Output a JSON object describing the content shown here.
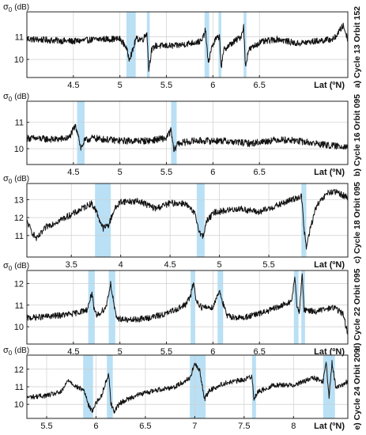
{
  "chart_data": [
    {
      "type": "line",
      "panel_label": "a) Cycle 13 Orbit 152",
      "ylabel_symbol": "σ",
      "ylabel_sub": "0",
      "ylabel_unit": "(dB)",
      "xlabel": "Lat (ºN)",
      "xlim": [
        4.0,
        7.45
      ],
      "ylim": [
        9.2,
        12.1
      ],
      "xticks": [
        4.5,
        5,
        5.5,
        6,
        6.5
      ],
      "xtick_labels": [
        "4.5",
        "5",
        "5.5",
        "6",
        "6.5"
      ],
      "yticks": [
        10,
        11
      ],
      "ytick_labels": [
        "10",
        "11"
      ],
      "grid": true,
      "highlight_bands": [
        [
          5.07,
          5.17
        ],
        [
          5.29,
          5.32
        ],
        [
          5.91,
          5.96
        ],
        [
          6.06,
          6.09
        ],
        [
          6.33,
          6.36
        ]
      ],
      "series": [
        {
          "points": [
            [
              4.0,
              10.9
            ],
            [
              4.5,
              10.8
            ],
            [
              4.8,
              10.9
            ],
            [
              5.0,
              10.9
            ],
            [
              5.06,
              10.6
            ],
            [
              5.1,
              10.05
            ],
            [
              5.14,
              10.4
            ],
            [
              5.17,
              10.9
            ],
            [
              5.25,
              10.9
            ],
            [
              5.29,
              11.2
            ],
            [
              5.31,
              9.55
            ],
            [
              5.34,
              10.4
            ],
            [
              5.38,
              10.6
            ],
            [
              5.6,
              10.6
            ],
            [
              5.8,
              10.75
            ],
            [
              5.88,
              10.8
            ],
            [
              5.92,
              11.3
            ],
            [
              5.95,
              9.8
            ],
            [
              5.98,
              10.45
            ],
            [
              6.03,
              10.9
            ],
            [
              6.07,
              11.0
            ],
            [
              6.09,
              9.65
            ],
            [
              6.12,
              10.45
            ],
            [
              6.2,
              10.7
            ],
            [
              6.3,
              11.0
            ],
            [
              6.33,
              11.45
            ],
            [
              6.35,
              9.65
            ],
            [
              6.38,
              10.4
            ],
            [
              6.5,
              10.75
            ],
            [
              6.7,
              10.9
            ],
            [
              6.9,
              10.7
            ],
            [
              7.1,
              10.8
            ],
            [
              7.3,
              10.9
            ],
            [
              7.4,
              11.5
            ],
            [
              7.45,
              10.9
            ]
          ],
          "noise": 0.14
        }
      ]
    },
    {
      "type": "line",
      "panel_label": "b) Cycle 16 Orbit 095",
      "ylabel_symbol": "σ",
      "ylabel_sub": "0",
      "ylabel_unit": "(dB)",
      "xlabel": "Lat (ºN)",
      "xlim": [
        4.0,
        7.45
      ],
      "ylim": [
        9.4,
        11.8
      ],
      "xticks": [
        4.5,
        5,
        5.5,
        6,
        6.5
      ],
      "xtick_labels": [
        "4.5",
        "5",
        "5.5",
        "6",
        "6.5"
      ],
      "yticks": [
        10,
        11
      ],
      "ytick_labels": [
        "10",
        "11"
      ],
      "grid": true,
      "highlight_bands": [
        [
          4.54,
          4.62
        ],
        [
          5.55,
          5.61
        ]
      ],
      "series": [
        {
          "points": [
            [
              4.0,
              10.4
            ],
            [
              4.3,
              10.35
            ],
            [
              4.45,
              10.4
            ],
            [
              4.52,
              10.85
            ],
            [
              4.55,
              10.6
            ],
            [
              4.58,
              10.0
            ],
            [
              4.62,
              10.3
            ],
            [
              4.7,
              10.4
            ],
            [
              5.0,
              10.3
            ],
            [
              5.3,
              10.3
            ],
            [
              5.5,
              10.4
            ],
            [
              5.55,
              10.7
            ],
            [
              5.58,
              9.9
            ],
            [
              5.62,
              10.2
            ],
            [
              5.8,
              10.3
            ],
            [
              6.1,
              10.3
            ],
            [
              6.4,
              10.2
            ],
            [
              6.7,
              10.35
            ],
            [
              6.9,
              10.3
            ],
            [
              7.1,
              10.2
            ],
            [
              7.3,
              10.1
            ],
            [
              7.45,
              10.1
            ]
          ],
          "noise": 0.13
        }
      ]
    },
    {
      "type": "line",
      "panel_label": "c) Cycle 18 Orbit 095",
      "ylabel_symbol": "σ",
      "ylabel_sub": "0",
      "ylabel_unit": "(dB)",
      "xlabel": "Lat (ºN)",
      "xlim": [
        3.05,
        6.3
      ],
      "ylim": [
        9.8,
        13.9
      ],
      "xticks": [
        3.5,
        4,
        4.5,
        5,
        5.5
      ],
      "xtick_labels": [
        "3.5",
        "4",
        "4.5",
        "5",
        "5.5"
      ],
      "yticks": [
        11,
        12,
        13
      ],
      "ytick_labels": [
        "11",
        "12",
        "13"
      ],
      "grid": true,
      "highlight_bands": [
        [
          3.74,
          3.9
        ],
        [
          4.77,
          4.85
        ],
        [
          5.83,
          5.88
        ]
      ],
      "series": [
        {
          "points": [
            [
              3.05,
              11.8
            ],
            [
              3.1,
              11.2
            ],
            [
              3.15,
              10.8
            ],
            [
              3.25,
              11.5
            ],
            [
              3.4,
              11.9
            ],
            [
              3.55,
              12.3
            ],
            [
              3.7,
              12.8
            ],
            [
              3.75,
              12.4
            ],
            [
              3.82,
              11.4
            ],
            [
              3.88,
              11.6
            ],
            [
              3.93,
              12.4
            ],
            [
              4.0,
              12.9
            ],
            [
              4.2,
              12.9
            ],
            [
              4.35,
              12.5
            ],
            [
              4.5,
              12.8
            ],
            [
              4.65,
              12.8
            ],
            [
              4.75,
              12.2
            ],
            [
              4.8,
              11.2
            ],
            [
              4.83,
              10.9
            ],
            [
              4.87,
              11.8
            ],
            [
              4.95,
              12.3
            ],
            [
              5.2,
              12.5
            ],
            [
              5.4,
              12.3
            ],
            [
              5.6,
              12.7
            ],
            [
              5.78,
              13.1
            ],
            [
              5.83,
              13.2
            ],
            [
              5.86,
              11.2
            ],
            [
              5.88,
              10.3
            ],
            [
              5.92,
              11.4
            ],
            [
              5.98,
              12.6
            ],
            [
              6.1,
              13.4
            ],
            [
              6.2,
              13.4
            ],
            [
              6.3,
              13.1
            ]
          ],
          "noise": 0.18
        }
      ]
    },
    {
      "type": "line",
      "panel_label": "d) Cycle 22 Orbit 095",
      "ylabel_symbol": "σ",
      "ylabel_sub": "0",
      "ylabel_unit": "(dB)",
      "xlabel": "Lat (ºN)",
      "xlim": [
        4.0,
        7.45
      ],
      "ylim": [
        9.2,
        12.6
      ],
      "xticks": [
        4.5,
        5,
        5.5,
        6,
        6.5
      ],
      "xtick_labels": [
        "4.5",
        "5",
        "5.5",
        "6",
        "6.5"
      ],
      "yticks": [
        10,
        11,
        12
      ],
      "ytick_labels": [
        "10",
        "11",
        "12"
      ],
      "grid": true,
      "highlight_bands": [
        [
          4.66,
          4.73
        ],
        [
          4.88,
          4.95
        ],
        [
          5.76,
          5.81
        ],
        [
          6.05,
          6.11
        ],
        [
          6.87,
          6.92
        ],
        [
          6.95,
          6.99
        ]
      ],
      "series": [
        {
          "points": [
            [
              4.0,
              10.4
            ],
            [
              4.3,
              10.5
            ],
            [
              4.5,
              10.6
            ],
            [
              4.65,
              10.8
            ],
            [
              4.7,
              11.6
            ],
            [
              4.72,
              10.8
            ],
            [
              4.75,
              10.5
            ],
            [
              4.85,
              10.9
            ],
            [
              4.9,
              12.0
            ],
            [
              4.93,
              11.2
            ],
            [
              4.96,
              10.4
            ],
            [
              5.1,
              10.3
            ],
            [
              5.3,
              10.4
            ],
            [
              5.5,
              10.6
            ],
            [
              5.7,
              11.0
            ],
            [
              5.76,
              11.4
            ],
            [
              5.79,
              12.1
            ],
            [
              5.82,
              11.2
            ],
            [
              5.88,
              10.9
            ],
            [
              6.0,
              10.9
            ],
            [
              6.07,
              11.7
            ],
            [
              6.1,
              11.2
            ],
            [
              6.15,
              10.5
            ],
            [
              6.3,
              10.4
            ],
            [
              6.5,
              10.6
            ],
            [
              6.7,
              10.9
            ],
            [
              6.85,
              11.2
            ],
            [
              6.88,
              12.4
            ],
            [
              6.9,
              11.0
            ],
            [
              6.93,
              10.7
            ],
            [
              6.96,
              12.4
            ],
            [
              6.98,
              10.8
            ],
            [
              7.1,
              10.7
            ],
            [
              7.3,
              10.9
            ],
            [
              7.4,
              10.6
            ],
            [
              7.45,
              9.6
            ]
          ],
          "noise": 0.14
        }
      ]
    },
    {
      "type": "line",
      "panel_label": "e) Cycle 24 Orbit 209",
      "ylabel_symbol": "σ",
      "ylabel_sub": "0",
      "ylabel_unit": "(dB)",
      "xlabel": "Lat (ºN)",
      "xlim": [
        5.3,
        8.55
      ],
      "ylim": [
        9.2,
        12.8
      ],
      "xticks": [
        5.5,
        6,
        6.5,
        7,
        7.5,
        8
      ],
      "xtick_labels": [
        "5.5",
        "6",
        "6.5",
        "7",
        "7.5",
        "8"
      ],
      "yticks": [
        10,
        11,
        12
      ],
      "ytick_labels": [
        "10",
        "11",
        "12"
      ],
      "grid": true,
      "highlight_bands": [
        [
          5.87,
          5.97
        ],
        [
          6.11,
          6.17
        ],
        [
          6.95,
          7.11
        ],
        [
          7.58,
          7.62
        ],
        [
          8.3,
          8.42
        ]
      ],
      "series": [
        {
          "points": [
            [
              5.3,
              10.4
            ],
            [
              5.5,
              10.5
            ],
            [
              5.65,
              10.7
            ],
            [
              5.72,
              11.4
            ],
            [
              5.8,
              11.0
            ],
            [
              5.88,
              10.8
            ],
            [
              5.92,
              10.0
            ],
            [
              5.96,
              9.6
            ],
            [
              6.0,
              10.1
            ],
            [
              6.05,
              10.4
            ],
            [
              6.1,
              11.3
            ],
            [
              6.13,
              11.7
            ],
            [
              6.15,
              10.1
            ],
            [
              6.18,
              9.6
            ],
            [
              6.25,
              10.1
            ],
            [
              6.4,
              10.5
            ],
            [
              6.6,
              10.8
            ],
            [
              6.8,
              11.0
            ],
            [
              6.95,
              11.5
            ],
            [
              7.0,
              12.3
            ],
            [
              7.05,
              11.9
            ],
            [
              7.1,
              10.3
            ],
            [
              7.15,
              10.8
            ],
            [
              7.3,
              11.2
            ],
            [
              7.5,
              11.4
            ],
            [
              7.58,
              11.6
            ],
            [
              7.6,
              10.3
            ],
            [
              7.64,
              10.7
            ],
            [
              7.8,
              11.1
            ],
            [
              8.0,
              11.1
            ],
            [
              8.2,
              11.5
            ],
            [
              8.3,
              11.3
            ],
            [
              8.33,
              12.4
            ],
            [
              8.36,
              10.4
            ],
            [
              8.39,
              12.4
            ],
            [
              8.43,
              10.9
            ],
            [
              8.55,
              11.3
            ]
          ],
          "noise": 0.14
        }
      ]
    }
  ]
}
